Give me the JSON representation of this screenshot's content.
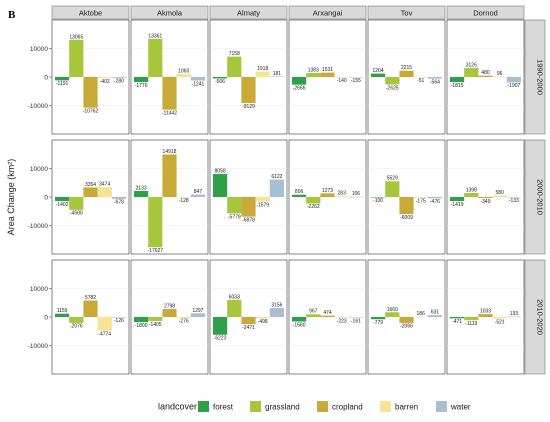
{
  "figure": {
    "panel_label": "B"
  },
  "colors": {
    "forest": "#2ea04a",
    "grassland": "#a6c63b",
    "cropland": "#c9a937",
    "barren": "#f8e294",
    "water": "#a9bfd0",
    "strip_fill": "#d9d9d9",
    "strip_border": "#7a7a7a",
    "grid": "#ebebeb"
  },
  "chart_data": {
    "type": "bar",
    "ylabel": "Area Change (km²)",
    "ylim": [
      -20000,
      20000
    ],
    "yticks": [
      "10000",
      "0",
      "-10000"
    ],
    "ytick_values": [
      10000,
      0,
      -10000
    ],
    "grid": true,
    "regions": [
      "Aktobe",
      "Akmola",
      "Almaty",
      "Arxangai",
      "Tov",
      "Dornod"
    ],
    "periods": [
      "1990-2000",
      "2000-2010",
      "2010-2020"
    ],
    "legend": {
      "title": "landcover",
      "position": "bottom",
      "entries": [
        "forest",
        "grassland",
        "cropland",
        "barren",
        "water"
      ]
    },
    "values": [
      [
        [
          -1191,
          13065,
          -10762,
          -402,
          -280
        ],
        [
          -1776,
          13361,
          -11442,
          1060,
          -1241
        ],
        [
          -506,
          7158,
          -9129,
          1918,
          181
        ],
        [
          -2666,
          1383,
          1531,
          -140,
          -155
        ],
        [
          1204,
          -2625,
          2215,
          -51,
          -564
        ],
        [
          -1815,
          3126,
          480,
          96,
          -1907
        ]
      ],
      [
        [
          -1402,
          -4500,
          3354,
          3474,
          -678
        ],
        [
          2133,
          -17627,
          14918,
          -128,
          847
        ],
        [
          8058,
          -5779,
          -6878,
          -1579,
          6122
        ],
        [
          806,
          -2262,
          1273,
          283,
          106
        ],
        [
          -100,
          5529,
          -6009,
          -175,
          -476
        ],
        [
          -1419,
          1398,
          -349,
          580,
          -133
        ]
      ],
      [
        [
          1159,
          -2076,
          5782,
          -4774,
          -126
        ],
        [
          -1800,
          -1405,
          2798,
          -276,
          1297
        ],
        [
          -6223,
          6033,
          -2471,
          -498,
          3156
        ],
        [
          -1580,
          967,
          474,
          -223,
          -161
        ],
        [
          -779,
          1660,
          -2066,
          186,
          631
        ],
        [
          -471,
          -1119,
          1033,
          -521,
          133
        ]
      ]
    ],
    "labels": [
      [
        [
          "-1191",
          "13065",
          "-10762",
          "-402",
          "-280"
        ],
        [
          "-1776",
          "13361",
          "-11442",
          "1060",
          "-1241"
        ],
        [
          "-506",
          "7158",
          "-9129",
          "1918",
          "181"
        ],
        [
          "-2666",
          "1383",
          "1531",
          "-140",
          "-155"
        ],
        [
          "1204",
          "-2625",
          "2215",
          "-51",
          "-564"
        ],
        [
          "-1815",
          "3126",
          "480",
          "96",
          "-1907"
        ]
      ],
      [
        [
          "-1402",
          "-4500",
          "3354",
          "3474",
          "-678"
        ],
        [
          "2133",
          "-17627",
          "14918",
          "-128",
          "847"
        ],
        [
          "8058",
          "-5779",
          "-6878",
          "-1579",
          "6122"
        ],
        [
          "806",
          "-2262",
          "1273",
          "283",
          "106"
        ],
        [
          "-100",
          "5529",
          "-6009",
          "-175",
          "-476"
        ],
        [
          "-1419",
          "1398",
          "-349",
          "580",
          "-133"
        ]
      ],
      [
        [
          "1159",
          "-2076",
          "5782",
          "-4774",
          "-126"
        ],
        [
          "-1800",
          "-1405",
          "2798",
          "-276",
          "1297"
        ],
        [
          "-6223",
          "6033",
          "-2471",
          "-498",
          "3156"
        ],
        [
          "-1580",
          "967",
          "474",
          "-223",
          "-161"
        ],
        [
          "-779",
          "1660",
          "-2066",
          "186",
          "631"
        ],
        [
          "-471",
          "-1119",
          "1033",
          "-521",
          "133"
        ]
      ]
    ]
  }
}
